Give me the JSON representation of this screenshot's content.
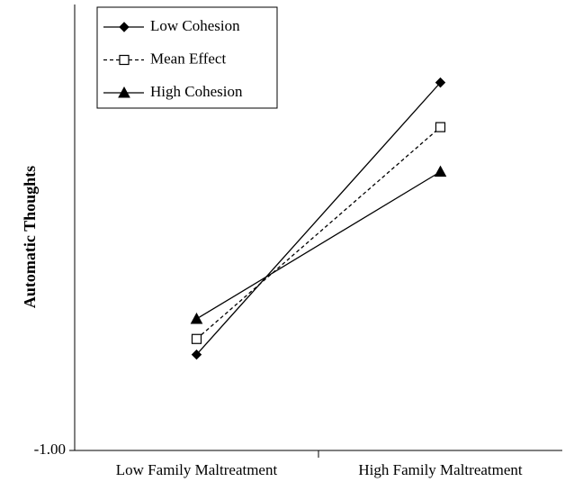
{
  "chart_data": {
    "type": "line",
    "y_label": "Automatic Thoughts",
    "categories": [
      "Low Family Maltreatment",
      "High Family Maltreatment"
    ],
    "series": [
      {
        "name": "Low Cohesion",
        "color": "#000000",
        "marker": "diamond",
        "dash": false,
        "values": [
          -0.57,
          0.65
        ]
      },
      {
        "name": "Mean Effect",
        "color": "#000000",
        "marker": "square-open",
        "dash": true,
        "values": [
          -0.5,
          0.45
        ]
      },
      {
        "name": "High Cohesion",
        "color": "#000000",
        "marker": "triangle",
        "dash": false,
        "values": [
          -0.41,
          0.25
        ]
      }
    ],
    "ylim": [
      -1,
      1
    ],
    "yticks": [
      {
        "value": -1,
        "label": "-1.00"
      }
    ],
    "legend": "top-left",
    "grid": false
  }
}
